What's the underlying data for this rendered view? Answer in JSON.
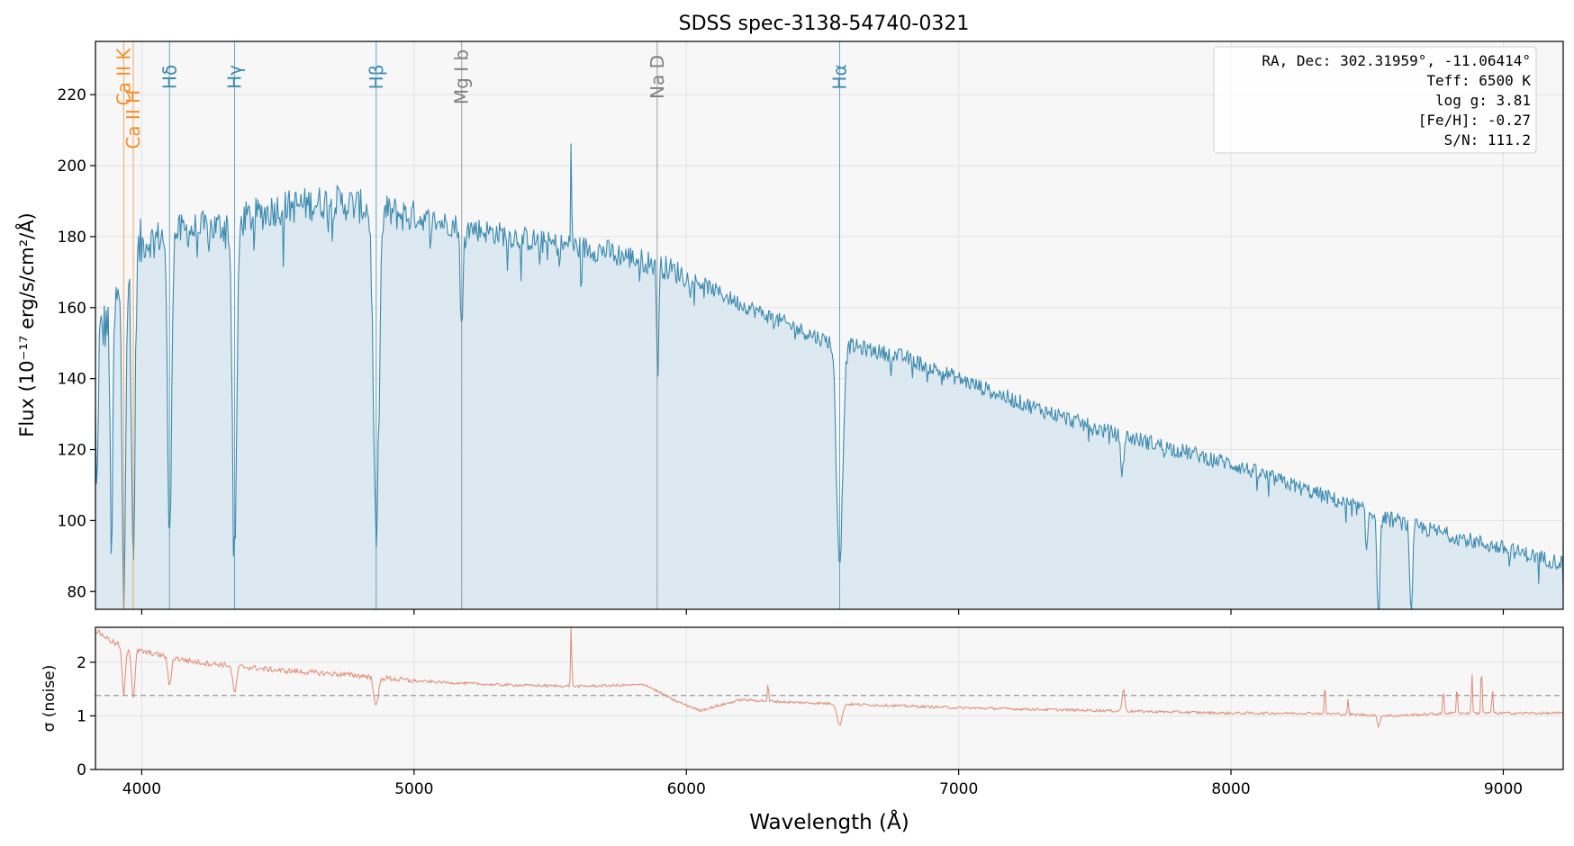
{
  "title": "SDSS spec-3138-54740-0321",
  "xlabel": "Wavelength (Å)",
  "info_box": [
    "RA, Dec: 302.31959°, -11.06414°",
    "Teff: 6500 K",
    "log g: 3.81",
    "[Fe/H]: -0.27",
    "S/N: 111.2"
  ],
  "colors": {
    "flux": "#3b8ab0",
    "flux_fill": "#dbe8ef",
    "noise": "#e08a72",
    "balmer": "#3b8ab0",
    "calcium": "#f28e2b",
    "metal": "#7f7f7f",
    "panel_bg": "#f7f7f7"
  },
  "chart_data": [
    {
      "type": "line",
      "panel": "flux",
      "ylabel": "Flux (10⁻¹⁷ erg/s/cm²/Å)",
      "xlim": [
        3830,
        9220
      ],
      "ylim": [
        75,
        235
      ],
      "xticks": [
        4000,
        5000,
        6000,
        7000,
        8000,
        9000
      ],
      "yticks": [
        80,
        100,
        120,
        140,
        160,
        180,
        200,
        220
      ],
      "grid": true,
      "fill_under": true,
      "continuum": {
        "x": [
          3830,
          3900,
          4000,
          4100,
          4300,
          4500,
          4700,
          4900,
          5100,
          5300,
          5500,
          5700,
          5900,
          6000,
          6200,
          6500,
          6800,
          7000,
          7200,
          7500,
          7800,
          8000,
          8300,
          8600,
          8900,
          9220
        ],
        "y": [
          150,
          160,
          178,
          181,
          183,
          188,
          190,
          187,
          184,
          181,
          178,
          176,
          172,
          169,
          161,
          151,
          146,
          140,
          134,
          126,
          120,
          116,
          108,
          100,
          94,
          88
        ]
      },
      "absorption_lines": [
        {
          "center": 3934,
          "depth": 85,
          "width": 6
        },
        {
          "center": 3969,
          "depth": 85,
          "width": 6
        },
        {
          "center": 3889,
          "depth": 65,
          "width": 5
        },
        {
          "center": 3835,
          "depth": 45,
          "width": 4
        },
        {
          "center": 4102,
          "depth": 88,
          "width": 7
        },
        {
          "center": 4341,
          "depth": 92,
          "width": 8
        },
        {
          "center": 4861,
          "depth": 92,
          "width": 10
        },
        {
          "center": 5175,
          "depth": 30,
          "width": 5
        },
        {
          "center": 5895,
          "depth": 30,
          "width": 4
        },
        {
          "center": 6563,
          "depth": 62,
          "width": 11
        },
        {
          "center": 7600,
          "depth": 10,
          "width": 6
        },
        {
          "center": 8498,
          "depth": 12,
          "width": 4
        },
        {
          "center": 8542,
          "depth": 30,
          "width": 5
        },
        {
          "center": 8662,
          "depth": 28,
          "width": 5
        }
      ],
      "emission_spikes": [
        {
          "center": 5577,
          "height": 30,
          "width": 2
        }
      ],
      "scatter_amplitude": 10,
      "line_markers": [
        {
          "label": "Ca II K",
          "x": 3934,
          "kind": "calcium",
          "text_y": 225
        },
        {
          "label": "Ca II H",
          "x": 3969,
          "kind": "calcium",
          "text_y": 213
        },
        {
          "label": "Hδ",
          "x": 4102,
          "kind": "balmer",
          "text_y": 225
        },
        {
          "label": "Hγ",
          "x": 4341,
          "kind": "balmer",
          "text_y": 225
        },
        {
          "label": "Hβ",
          "x": 4861,
          "kind": "balmer",
          "text_y": 225
        },
        {
          "label": "Mg I b",
          "x": 5175,
          "kind": "metal",
          "text_y": 225
        },
        {
          "label": "Na D",
          "x": 5893,
          "kind": "metal",
          "text_y": 225
        },
        {
          "label": "Hα",
          "x": 6563,
          "kind": "balmer",
          "text_y": 225
        }
      ]
    },
    {
      "type": "line",
      "panel": "noise",
      "ylabel": "σ (noise)",
      "xlim": [
        3830,
        9220
      ],
      "ylim": [
        0,
        2.65
      ],
      "xticks": [
        4000,
        5000,
        6000,
        7000,
        8000,
        9000
      ],
      "yticks": [
        0,
        1,
        2
      ],
      "grid": true,
      "reference_level": 1.38,
      "continuum": {
        "x": [
          3830,
          3900,
          4000,
          4200,
          4500,
          4800,
          5000,
          5300,
          5600,
          5850,
          5950,
          6050,
          6200,
          6400,
          6700,
          7000,
          7500,
          8000,
          8300,
          8600,
          8800,
          9000,
          9220
        ],
        "y": [
          2.6,
          2.35,
          2.2,
          2.0,
          1.85,
          1.75,
          1.65,
          1.58,
          1.55,
          1.58,
          1.3,
          1.1,
          1.3,
          1.25,
          1.2,
          1.15,
          1.1,
          1.05,
          1.05,
          1.0,
          1.05,
          1.05,
          1.05
        ]
      },
      "dips": [
        {
          "center": 3934,
          "depth": 0.9,
          "width": 6
        },
        {
          "center": 3969,
          "depth": 0.9,
          "width": 6
        },
        {
          "center": 4102,
          "depth": 0.55,
          "width": 6
        },
        {
          "center": 4341,
          "depth": 0.5,
          "width": 7
        },
        {
          "center": 4861,
          "depth": 0.55,
          "width": 8
        },
        {
          "center": 6563,
          "depth": 0.4,
          "width": 9
        },
        {
          "center": 8542,
          "depth": 0.2,
          "width": 5
        }
      ],
      "spikes": [
        {
          "center": 5577,
          "height": 1.2,
          "width": 2
        },
        {
          "center": 6300,
          "height": 0.35,
          "width": 2
        },
        {
          "center": 7605,
          "height": 0.4,
          "width": 5
        },
        {
          "center": 8345,
          "height": 0.6,
          "width": 2
        },
        {
          "center": 8430,
          "height": 0.3,
          "width": 2
        },
        {
          "center": 8780,
          "height": 0.5,
          "width": 2
        },
        {
          "center": 8830,
          "height": 0.6,
          "width": 2
        },
        {
          "center": 8885,
          "height": 0.8,
          "width": 2
        },
        {
          "center": 8920,
          "height": 1.0,
          "width": 2
        },
        {
          "center": 8960,
          "height": 0.5,
          "width": 2
        }
      ],
      "scatter_amplitude": 0.05
    }
  ]
}
